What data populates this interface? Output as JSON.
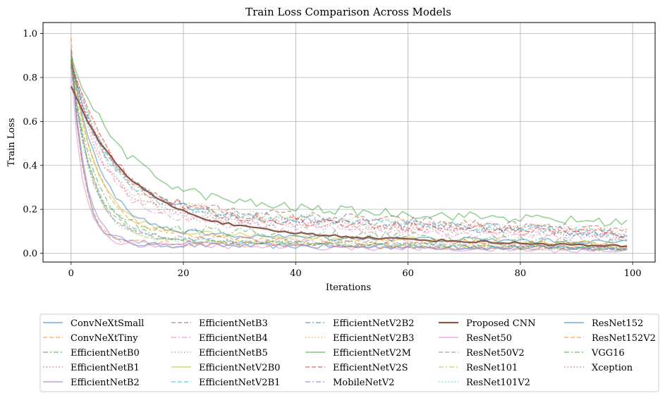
{
  "chart_data": {
    "type": "line",
    "title": "Train Loss Comparison Across Models",
    "xlabel": "Iterations",
    "ylabel": "Train Loss",
    "xlim": [
      -5,
      104
    ],
    "ylim": [
      -0.04,
      1.05
    ],
    "xticks": [
      0,
      20,
      40,
      60,
      80,
      100
    ],
    "xtick_labels": [
      "0",
      "20",
      "40",
      "60",
      "80",
      "100"
    ],
    "yticks": [
      0.0,
      0.2,
      0.4,
      0.6,
      0.8,
      1.0
    ],
    "ytick_labels": [
      "0.0",
      "0.2",
      "0.4",
      "0.6",
      "0.8",
      "1.0"
    ],
    "grid": true,
    "legend_position": "bottom-center",
    "legend_columns": 5,
    "x": "0..99 (one point per iteration)",
    "series": [
      {
        "name": "ConvNeXtSmall",
        "color": "#1f77b4",
        "dash": "solid",
        "start": 0.93,
        "mid": 0.04,
        "end": 0.02,
        "k": 0.28
      },
      {
        "name": "ConvNeXtTiny",
        "color": "#ff7f0e",
        "dash": "dashed",
        "start": 0.98,
        "mid": 0.05,
        "end": 0.02,
        "k": 0.3
      },
      {
        "name": "EfficientNetB0",
        "color": "#2ca02c",
        "dash": "dashdot",
        "start": 0.88,
        "mid": 0.12,
        "end": 0.05,
        "k": 0.2
      },
      {
        "name": "EfficientNetB1",
        "color": "#d62728",
        "dash": "dotted",
        "start": 0.9,
        "mid": 0.18,
        "end": 0.08,
        "k": 0.12
      },
      {
        "name": "EfficientNetB2",
        "color": "#9467bd",
        "dash": "solid",
        "start": 0.92,
        "mid": 0.05,
        "end": 0.02,
        "k": 0.26
      },
      {
        "name": "EfficientNetB3",
        "color": "#8c564b",
        "dash": "dashed",
        "start": 0.85,
        "mid": 0.22,
        "end": 0.1,
        "k": 0.1
      },
      {
        "name": "EfficientNetB4",
        "color": "#e377c2",
        "dash": "dashdot",
        "start": 0.88,
        "mid": 0.15,
        "end": 0.07,
        "k": 0.11
      },
      {
        "name": "EfficientNetB5",
        "color": "#7f7f7f",
        "dash": "dotted",
        "start": 0.87,
        "mid": 0.16,
        "end": 0.08,
        "k": 0.1
      },
      {
        "name": "EfficientNetV2B0",
        "color": "#bcbd22",
        "dash": "solid",
        "start": 0.9,
        "mid": 0.1,
        "end": 0.04,
        "k": 0.14
      },
      {
        "name": "EfficientNetV2B1",
        "color": "#17becf",
        "dash": "dashed",
        "start": 0.89,
        "mid": 0.2,
        "end": 0.09,
        "k": 0.1
      },
      {
        "name": "EfficientNetV2B2",
        "color": "#1f77b4",
        "dash": "dashdot",
        "start": 0.86,
        "mid": 0.19,
        "end": 0.09,
        "k": 0.09
      },
      {
        "name": "EfficientNetV2B3",
        "color": "#ff7f0e",
        "dash": "dotted",
        "start": 0.88,
        "mid": 0.2,
        "end": 0.1,
        "k": 0.09
      },
      {
        "name": "EfficientNetV2M",
        "color": "#2ca02c",
        "dash": "solid",
        "start": 0.9,
        "mid": 0.24,
        "end": 0.14,
        "k": 0.07
      },
      {
        "name": "EfficientNetV2S",
        "color": "#d62728",
        "dash": "dashed",
        "start": 0.87,
        "mid": 0.18,
        "end": 0.09,
        "k": 0.08
      },
      {
        "name": "MobileNetV2",
        "color": "#9467bd",
        "dash": "dashdot",
        "start": 0.85,
        "mid": 0.08,
        "end": 0.02,
        "k": 0.18
      },
      {
        "name": "Proposed CNN",
        "color": "#8c564b",
        "dash": "solid",
        "start": 0.76,
        "mid": 0.11,
        "end": 0.03,
        "k": 0.06,
        "bold": true
      },
      {
        "name": "ResNet50",
        "color": "#e377c2",
        "dash": "solid",
        "start": 0.84,
        "mid": 0.04,
        "end": 0.01,
        "k": 0.3
      },
      {
        "name": "ResNet50V2",
        "color": "#7f7f7f",
        "dash": "dashed",
        "start": 0.86,
        "mid": 0.06,
        "end": 0.02,
        "k": 0.16
      },
      {
        "name": "ResNet101",
        "color": "#bcbd22",
        "dash": "dashdot",
        "start": 0.87,
        "mid": 0.06,
        "end": 0.02,
        "k": 0.17
      },
      {
        "name": "ResNet101V2",
        "color": "#17becf",
        "dash": "dotted",
        "start": 0.86,
        "mid": 0.06,
        "end": 0.02,
        "k": 0.18
      },
      {
        "name": "ResNet152",
        "color": "#1f77b4",
        "dash": "solid",
        "start": 0.88,
        "mid": 0.09,
        "end": 0.05,
        "k": 0.12
      },
      {
        "name": "ResNet152V2",
        "color": "#ff7f0e",
        "dash": "dashed",
        "start": 0.87,
        "mid": 0.08,
        "end": 0.04,
        "k": 0.13
      },
      {
        "name": "VGG16",
        "color": "#2ca02c",
        "dash": "dashdot",
        "start": 0.86,
        "mid": 0.07,
        "end": 0.02,
        "k": 0.15
      },
      {
        "name": "Xception",
        "color": "#d62728",
        "dash": "dotted",
        "start": 0.88,
        "mid": 0.17,
        "end": 0.09,
        "k": 0.09
      }
    ]
  }
}
